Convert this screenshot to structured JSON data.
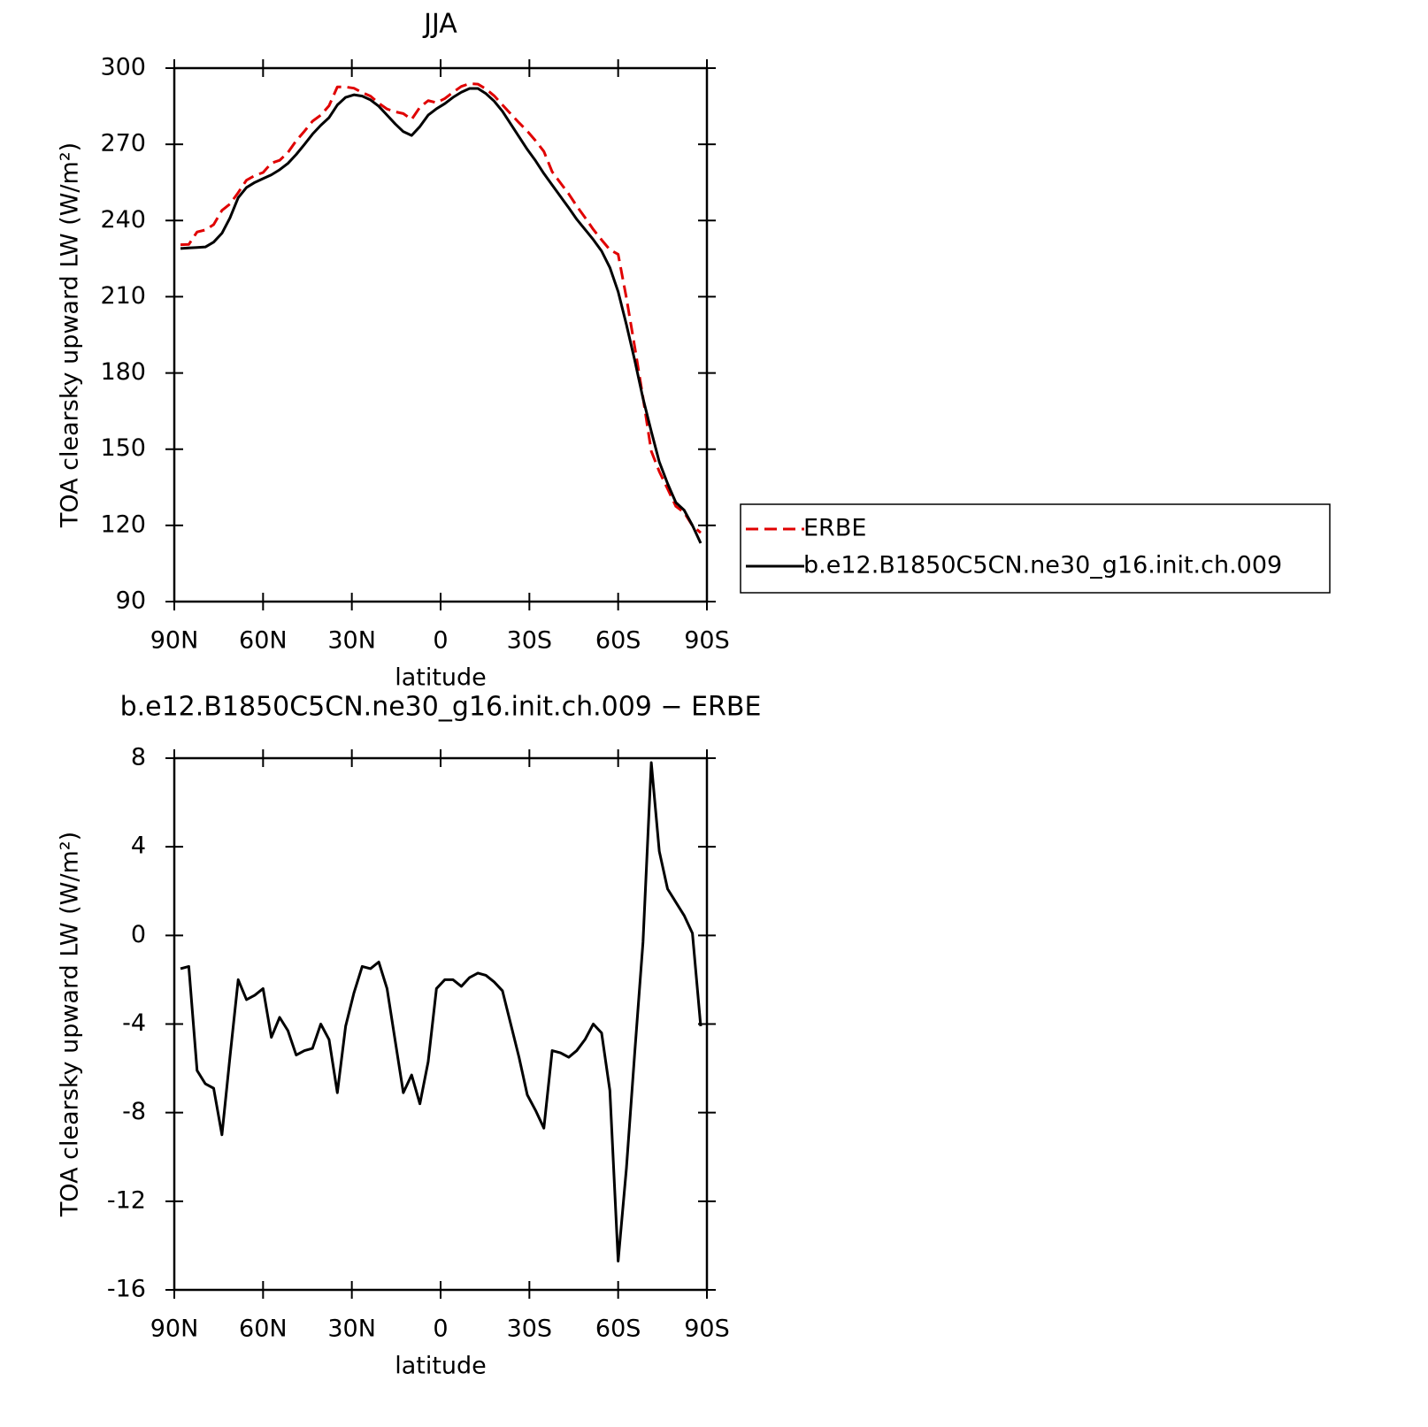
{
  "chart_data": [
    {
      "type": "line",
      "title": "JJA",
      "xlabel": "latitude",
      "ylabel": "TOA clearsky upward LW (W/m²)",
      "x": [
        87.9,
        85.1,
        82.3,
        79.5,
        76.7,
        73.9,
        71.2,
        68.4,
        65.6,
        62.8,
        60.0,
        57.2,
        54.4,
        51.6,
        48.8,
        46.0,
        43.3,
        40.5,
        37.7,
        34.9,
        32.1,
        29.3,
        26.5,
        23.7,
        20.9,
        18.1,
        15.3,
        12.6,
        9.8,
        7.0,
        4.2,
        1.4,
        -1.4,
        -4.2,
        -7.0,
        -9.8,
        -12.6,
        -15.3,
        -18.1,
        -20.9,
        -23.7,
        -26.5,
        -29.3,
        -32.1,
        -34.9,
        -37.7,
        -40.5,
        -43.3,
        -46.0,
        -48.8,
        -51.6,
        -54.4,
        -57.2,
        -60.0,
        -62.8,
        -65.6,
        -68.4,
        -71.2,
        -73.9,
        -76.7,
        -79.5,
        -82.3,
        -85.1,
        -87.9
      ],
      "series": [
        {
          "name": "ERBE",
          "color": "#e00000",
          "linestyle": "dashed",
          "values": [
            230.5,
            230.6,
            235.5,
            236.3,
            238.4,
            244,
            246.5,
            251,
            255.9,
            257.7,
            258.9,
            262.6,
            263.7,
            266.8,
            271.4,
            275.2,
            279.1,
            281.5,
            285.2,
            292.6,
            292.6,
            292.1,
            290.4,
            289,
            286.2,
            283.9,
            282.8,
            282.1,
            279.8,
            284.6,
            287.2,
            286.4,
            288,
            290.5,
            292.8,
            293.9,
            293.7,
            291.8,
            289.1,
            285.5,
            282,
            278.5,
            275.2,
            271.4,
            267.2,
            259.2,
            254.8,
            250.5,
            245.7,
            241.2,
            236.5,
            232.4,
            228.5,
            226.7,
            209.5,
            190.3,
            170.3,
            149.2,
            141.2,
            134.4,
            127.5,
            125.1,
            119.9,
            117.1
          ]
        },
        {
          "name": "b.e12.B1850C5CN.ne30_g16.init.ch.009",
          "color": "#000000",
          "linestyle": "solid",
          "values": [
            229,
            229.2,
            229.4,
            229.6,
            231.5,
            235,
            241,
            249,
            253,
            255,
            256.5,
            258,
            260,
            262.5,
            266,
            270,
            274,
            277.5,
            280.5,
            285.5,
            288.5,
            289.5,
            289,
            287.5,
            285,
            281.5,
            278,
            275,
            273.5,
            277,
            281.5,
            284,
            286,
            288.5,
            290.5,
            292,
            292,
            290,
            287,
            283,
            278,
            273,
            268,
            263.5,
            258.5,
            254,
            249.5,
            245,
            240.5,
            236.5,
            232.5,
            228,
            221.5,
            212,
            199,
            185,
            170,
            157,
            145,
            136.5,
            129,
            126,
            120,
            113
          ]
        }
      ],
      "xlim": [
        90,
        -90
      ],
      "xticks": [
        {
          "value": 90,
          "label": "90N"
        },
        {
          "value": 60,
          "label": "60N"
        },
        {
          "value": 30,
          "label": "30N"
        },
        0,
        {
          "value": -30,
          "label": "30S"
        },
        {
          "value": -60,
          "label": "60S"
        },
        {
          "value": -90,
          "label": "90S"
        }
      ],
      "ylim": [
        90,
        300
      ],
      "yticks": [
        90,
        120,
        150,
        180,
        210,
        240,
        270,
        300
      ],
      "legend": "right"
    },
    {
      "type": "line",
      "title": "b.e12.B1850C5CN.ne30_g16.init.ch.009 − ERBE",
      "xlabel": "latitude",
      "ylabel": "TOA clearsky upward LW (W/m²)",
      "x": [
        87.9,
        85.1,
        82.3,
        79.5,
        76.7,
        73.9,
        71.2,
        68.4,
        65.6,
        62.8,
        60.0,
        57.2,
        54.4,
        51.6,
        48.8,
        46.0,
        43.3,
        40.5,
        37.7,
        34.9,
        32.1,
        29.3,
        26.5,
        23.7,
        20.9,
        18.1,
        15.3,
        12.6,
        9.8,
        7.0,
        4.2,
        1.4,
        -1.4,
        -4.2,
        -7.0,
        -9.8,
        -12.6,
        -15.3,
        -18.1,
        -20.9,
        -23.7,
        -26.5,
        -29.3,
        -32.1,
        -34.9,
        -37.7,
        -40.5,
        -43.3,
        -46.0,
        -48.8,
        -51.6,
        -54.4,
        -57.2,
        -60.0,
        -62.8,
        -65.6,
        -68.4,
        -71.2,
        -73.9,
        -76.7,
        -79.5,
        -82.3,
        -85.1,
        -87.9
      ],
      "values": [
        -1.5,
        -1.4,
        -6.1,
        -6.7,
        -6.9,
        -9.0,
        -5.5,
        -2.0,
        -2.9,
        -2.7,
        -2.4,
        -4.6,
        -3.7,
        -4.3,
        -5.4,
        -5.2,
        -5.1,
        -4.0,
        -4.7,
        -7.1,
        -4.1,
        -2.6,
        -1.4,
        -1.5,
        -1.2,
        -2.4,
        -4.8,
        -7.1,
        -6.3,
        -7.6,
        -5.7,
        -2.4,
        -2.0,
        -2.0,
        -2.3,
        -1.9,
        -1.7,
        -1.8,
        -2.1,
        -2.5,
        -4.0,
        -5.5,
        -7.2,
        -7.9,
        -8.7,
        -5.2,
        -5.3,
        -5.5,
        -5.2,
        -4.7,
        -4.0,
        -4.4,
        -7.0,
        -14.7,
        -10.5,
        -5.3,
        -0.3,
        7.8,
        3.8,
        2.1,
        1.5,
        0.9,
        0.1,
        -4.1
      ],
      "color": "#000000",
      "xlim": [
        90,
        -90
      ],
      "xticks": [
        {
          "value": 90,
          "label": "90N"
        },
        {
          "value": 60,
          "label": "60N"
        },
        {
          "value": 30,
          "label": "30N"
        },
        0,
        {
          "value": -30,
          "label": "30S"
        },
        {
          "value": -60,
          "label": "60S"
        },
        {
          "value": -90,
          "label": "90S"
        }
      ],
      "ylim": [
        -16,
        8
      ],
      "yticks": [
        -16,
        -12,
        -8,
        -4,
        0,
        4,
        8
      ]
    }
  ]
}
